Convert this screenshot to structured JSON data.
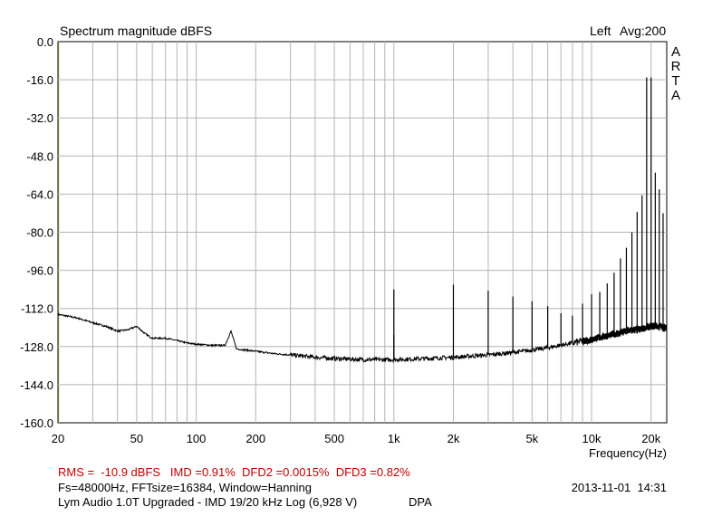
{
  "colors": {
    "stats": "#c00000",
    "curve": "#000000",
    "grid": "#b4b4b4",
    "plot_bg": "#ffffff"
  },
  "header": {
    "title": "Spectrum magnitude dBFS",
    "channel": "Left",
    "avg": "Avg:200",
    "brand_letters": [
      "A",
      "R",
      "T",
      "A"
    ]
  },
  "footer": {
    "stats_line": "RMS =  -10.9 dBFS   IMD =0.91%  DFD2 =0.0015%  DFD3 =0.82%",
    "settings_line": "Fs=48000Hz, FFTsize=16384, Window=Hanning",
    "timestamp": "2013-11-01  14:31",
    "device_line": "Lym Audio 1.0T Upgraded - IMD 19/20 kHz Log (6,928 V)",
    "tag": "DPA"
  },
  "chart_data": {
    "type": "line",
    "title": "Spectrum magnitude dBFS",
    "xlabel": "Frequency(Hz)",
    "ylabel": "",
    "x_scale": "log",
    "xlim": [
      20,
      24000
    ],
    "ylim": [
      -160,
      0
    ],
    "y_ticks": [
      "0.0",
      "-16.0",
      "-32.0",
      "-48.0",
      "-64.0",
      "-80.0",
      "-96.0",
      "-112.0",
      "-128.0",
      "-144.0",
      "-160.0"
    ],
    "x_ticks": [
      {
        "value": 20,
        "label": "20"
      },
      {
        "value": 50,
        "label": "50"
      },
      {
        "value": 100,
        "label": "100"
      },
      {
        "value": 200,
        "label": "200"
      },
      {
        "value": 500,
        "label": "500"
      },
      {
        "value": 1000,
        "label": "1k"
      },
      {
        "value": 2000,
        "label": "2k"
      },
      {
        "value": 5000,
        "label": "5k"
      },
      {
        "value": 10000,
        "label": "10k"
      },
      {
        "value": 20000,
        "label": "20k"
      }
    ],
    "grid": true,
    "series": [
      {
        "values_description_free": true,
        "noise_floor": [
          [
            20,
            -114.5
          ],
          [
            25,
            -116
          ],
          [
            30,
            -118
          ],
          [
            35,
            -119.5
          ],
          [
            40,
            -121.5
          ],
          [
            45,
            -121
          ],
          [
            50,
            -119.5
          ],
          [
            55,
            -122.5
          ],
          [
            60,
            -124.5
          ],
          [
            70,
            -124.5
          ],
          [
            80,
            -125.5
          ],
          [
            90,
            -126.5
          ],
          [
            100,
            -127
          ],
          [
            120,
            -127.5
          ],
          [
            140,
            -127.5
          ],
          [
            150,
            -121.5
          ],
          [
            160,
            -129
          ],
          [
            180,
            -129.5
          ],
          [
            200,
            -130
          ],
          [
            250,
            -131
          ],
          [
            300,
            -131.5
          ],
          [
            400,
            -132.5
          ],
          [
            500,
            -133
          ],
          [
            700,
            -133.5
          ],
          [
            1000,
            -133.5
          ],
          [
            1500,
            -133
          ],
          [
            2000,
            -132.5
          ],
          [
            3000,
            -131.5
          ],
          [
            4000,
            -130.5
          ],
          [
            5000,
            -129.5
          ],
          [
            6000,
            -128.5
          ],
          [
            8000,
            -126.5
          ],
          [
            10000,
            -125
          ],
          [
            12000,
            -123.5
          ],
          [
            15000,
            -121.5
          ],
          [
            18000,
            -120.5
          ],
          [
            20000,
            -119.5
          ],
          [
            22000,
            -119.5
          ],
          [
            24000,
            -120.5
          ]
        ],
        "peaks": [
          [
            1000,
            -104
          ],
          [
            1000,
            -123
          ],
          [
            2000,
            -102
          ],
          [
            3000,
            -104.5
          ],
          [
            4000,
            -107
          ],
          [
            5000,
            -109
          ],
          [
            6000,
            -111
          ],
          [
            7000,
            -114
          ],
          [
            8000,
            -115
          ],
          [
            9000,
            -110
          ],
          [
            10000,
            -106
          ],
          [
            11000,
            -105
          ],
          [
            12000,
            -101.5
          ],
          [
            13000,
            -97
          ],
          [
            14000,
            -91
          ],
          [
            15000,
            -86.5
          ],
          [
            16000,
            -80
          ],
          [
            17000,
            -71.5
          ],
          [
            18000,
            -64.5
          ],
          [
            19000,
            -15
          ],
          [
            20000,
            -15
          ],
          [
            21000,
            -55
          ],
          [
            22000,
            -62
          ],
          [
            23000,
            -72
          ]
        ]
      }
    ]
  }
}
